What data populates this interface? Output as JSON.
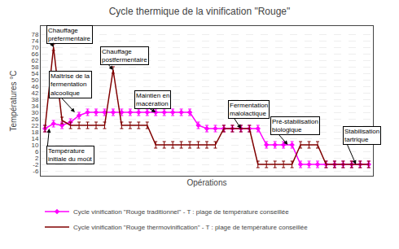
{
  "chart_data": {
    "type": "line",
    "title": "Cycle thermique de la vinification \"Rouge\"",
    "xlabel": "Opérations",
    "ylabel": "Températures °C",
    "x": [
      0,
      1,
      2,
      3,
      4,
      5,
      6,
      7,
      8,
      9,
      10,
      11,
      12,
      13,
      14,
      15,
      16,
      17,
      18,
      19,
      20,
      21,
      22,
      23,
      24,
      25,
      26,
      27,
      28,
      29,
      30,
      31,
      32,
      33,
      34,
      35,
      36,
      37,
      38
    ],
    "series": [
      {
        "name": "Cycle vinification \"Rouge traditionnel\" - T : plage de température conseillée",
        "color": "#ff00ff",
        "marker": "diamond",
        "line_style": "solid",
        "error": 2,
        "values": [
          20,
          23,
          22,
          24,
          28,
          30,
          30,
          30,
          30,
          30,
          30,
          30,
          30,
          30,
          30,
          30,
          30,
          30,
          22,
          20,
          20,
          20,
          20,
          20,
          20,
          20,
          10,
          10,
          10,
          10,
          -2,
          -2,
          -2,
          -2,
          -2,
          -2,
          -2,
          -2,
          -2
        ]
      },
      {
        "name": "Cycle vinification \"Rouge thermovinification\" - T : plage de température conseillée",
        "color": "#800000",
        "marker": "none",
        "line_style": "solid",
        "error": 2,
        "values": [
          20,
          70,
          25,
          22,
          22,
          22,
          22,
          22,
          56,
          22,
          22,
          22,
          22,
          10,
          10,
          10,
          10,
          10,
          10,
          10,
          10,
          20,
          20,
          20,
          20,
          -2,
          -2,
          -2,
          -2,
          -2,
          10,
          10,
          10,
          -2,
          -2,
          -2,
          -2,
          -2,
          -2
        ]
      }
    ],
    "xlim": [
      -0.5,
      38.5
    ],
    "ylim": [
      -9,
      83
    ],
    "yticks": [
      -6,
      -2,
      2,
      6,
      10,
      14,
      18,
      22,
      26,
      30,
      34,
      38,
      42,
      46,
      50,
      54,
      58,
      62,
      66,
      70,
      74,
      78
    ],
    "tick_labels": "y",
    "grid": true,
    "legend": "bottom",
    "annotations": [
      {
        "text": "Chauffage\npréfermentaire",
        "x": 1.0,
        "y": 70,
        "text_x": 0.2,
        "text_y": 78
      },
      {
        "text": "Chauffage\npostfermentaire",
        "x": 8.0,
        "y": 56,
        "text_x": 6.5,
        "text_y": 65
      },
      {
        "text": "Maîtrise de la\nfermentation\nalcoolique",
        "x": 3.5,
        "y": 30,
        "text_x": 0.5,
        "text_y": 47
      },
      {
        "text": "Maintien en\nmacération",
        "x": 13.0,
        "y": 30,
        "text_x": 10.5,
        "text_y": 38
      },
      {
        "text": "Fermentation\nmalolactique",
        "x": 23.0,
        "y": 20,
        "text_x": 21.5,
        "text_y": 32
      },
      {
        "text": "Pré-stabilisation\nbiologique",
        "x": 28.5,
        "y": 10,
        "text_x": 26.5,
        "text_y": 22
      },
      {
        "text": "Stabilisation\ntartrique",
        "x": 36.5,
        "y": -2,
        "text_x": 35.0,
        "text_y": 16
      },
      {
        "text": "Température\ninitiale du moût",
        "x": 0.5,
        "y": 20,
        "text_x": 0.2,
        "text_y": 4
      }
    ]
  }
}
